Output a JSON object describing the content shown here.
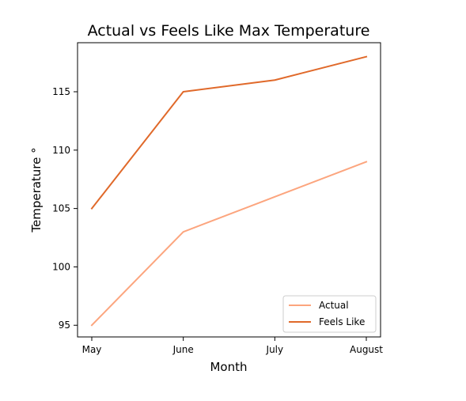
{
  "chart_data": {
    "type": "line",
    "title": "Actual vs Feels Like Max Temperature",
    "xlabel": "Month",
    "ylabel": "Temperature °",
    "categories": [
      "May",
      "June",
      "July",
      "August"
    ],
    "yticks": [
      95,
      100,
      105,
      110,
      115
    ],
    "ylim": [
      94.0,
      119.2
    ],
    "grid": false,
    "legend_position": "lower-right",
    "series": [
      {
        "name": "Actual",
        "color": "#fca57e",
        "values": [
          95,
          103,
          106,
          109
        ]
      },
      {
        "name": "Feels Like",
        "color": "#e0692a",
        "values": [
          105,
          115,
          116,
          118
        ]
      }
    ]
  }
}
